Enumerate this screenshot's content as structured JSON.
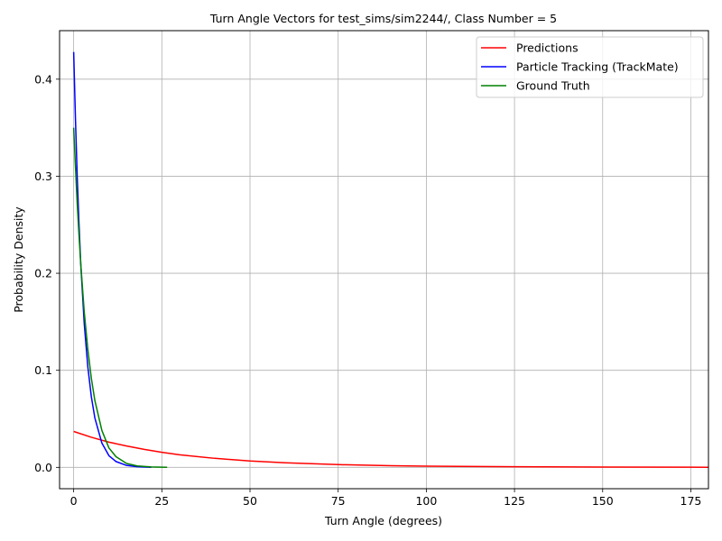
{
  "chart_data": {
    "type": "line",
    "title": "Turn Angle Vectors for test_sims/sim2244/, Class Number = 5",
    "xlabel": "Turn Angle (degrees)",
    "ylabel": "Probability Density",
    "xlim": [
      -4,
      180
    ],
    "ylim": [
      -0.022,
      0.45
    ],
    "xticks": [
      0,
      25,
      50,
      75,
      100,
      125,
      150,
      175
    ],
    "yticks": [
      0.0,
      0.1,
      0.2,
      0.3,
      0.4
    ],
    "xtick_labels": [
      "0",
      "25",
      "50",
      "75",
      "100",
      "125",
      "150",
      "175"
    ],
    "ytick_labels": [
      "0.0",
      "0.1",
      "0.2",
      "0.3",
      "0.4"
    ],
    "grid": true,
    "legend_position": "top-right",
    "series": [
      {
        "name": "Predictions",
        "color": "#ff0000",
        "x": [
          0,
          5,
          10,
          15,
          20,
          25,
          30,
          40,
          50,
          60,
          75,
          90,
          100,
          125,
          150,
          180
        ],
        "y": [
          0.037,
          0.031,
          0.026,
          0.022,
          0.0185,
          0.0155,
          0.013,
          0.0093,
          0.0066,
          0.0047,
          0.0028,
          0.0017,
          0.0012,
          0.0006,
          0.0003,
          0.0001
        ]
      },
      {
        "name": "Particle Tracking (TrackMate)",
        "color": "#0000ff",
        "x": [
          0,
          0.5,
          1,
          1.5,
          2,
          3,
          4,
          5,
          6,
          8,
          10,
          12,
          15,
          18,
          22
        ],
        "y": [
          0.428,
          0.36,
          0.3,
          0.252,
          0.21,
          0.148,
          0.104,
          0.073,
          0.051,
          0.025,
          0.012,
          0.006,
          0.002,
          0.0007,
          0.0001
        ]
      },
      {
        "name": "Ground Truth",
        "color": "#008000",
        "x": [
          0,
          0.5,
          1,
          1.5,
          2,
          3,
          4,
          5,
          6,
          8,
          10,
          12,
          15,
          18,
          22,
          26.5
        ],
        "y": [
          0.35,
          0.31,
          0.272,
          0.24,
          0.21,
          0.16,
          0.122,
          0.092,
          0.069,
          0.038,
          0.02,
          0.011,
          0.004,
          0.0015,
          0.0004,
          0.0001
        ]
      }
    ]
  }
}
